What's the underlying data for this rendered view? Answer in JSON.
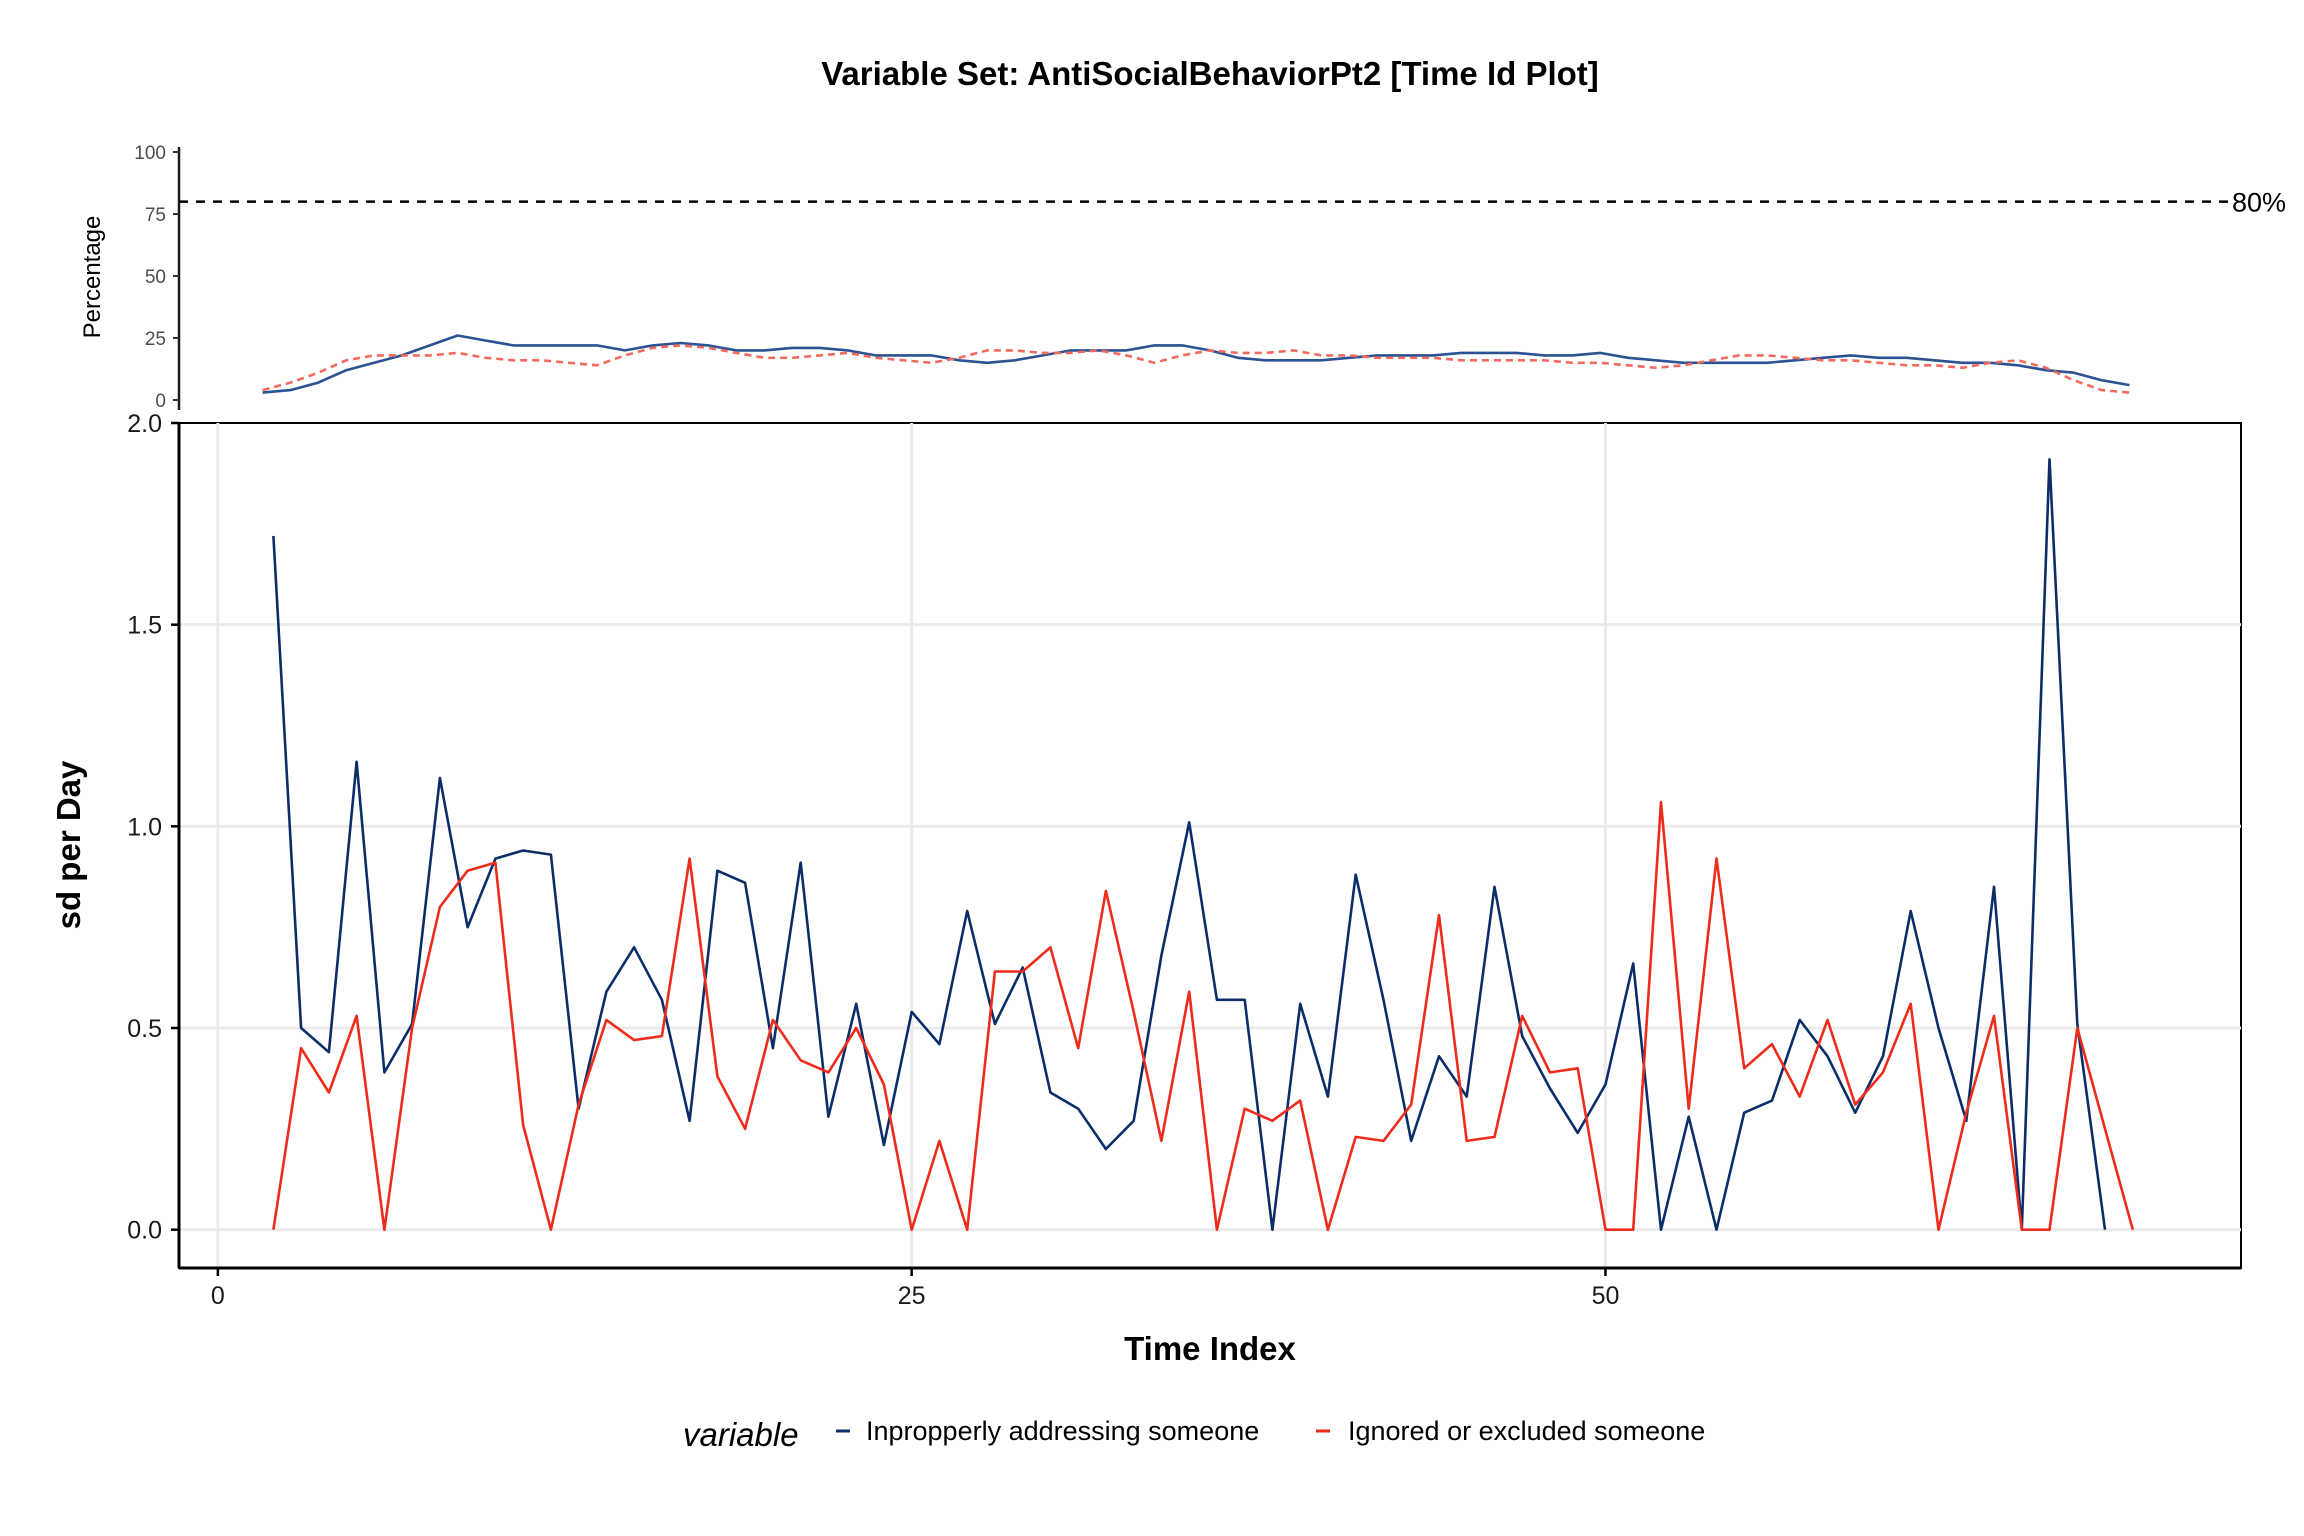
{
  "chart_data": [
    {
      "type": "line",
      "panel": "coverage",
      "title": "Variable Set: AntiSocialBehaviorPt2 [Time Id Plot]",
      "ylabel": "Percentage",
      "xlim": [
        -1,
        73
      ],
      "ylim": [
        0,
        100
      ],
      "yticks": [
        0,
        25,
        50,
        75,
        100
      ],
      "reference_line": {
        "y": 80,
        "label": "80%",
        "style": "dashed"
      },
      "x": [
        2,
        3,
        4,
        5,
        6,
        7,
        8,
        9,
        10,
        11,
        12,
        13,
        14,
        15,
        16,
        17,
        18,
        19,
        20,
        21,
        22,
        23,
        24,
        25,
        26,
        27,
        28,
        29,
        30,
        31,
        32,
        33,
        34,
        35,
        36,
        37,
        38,
        39,
        40,
        41,
        42,
        43,
        44,
        45,
        46,
        47,
        48,
        49,
        50,
        51,
        52,
        53,
        54,
        55,
        56,
        57,
        58,
        59,
        60,
        61,
        62,
        63,
        64,
        65,
        66,
        67,
        68,
        69
      ],
      "series": [
        {
          "name": "Inpropperly addressing someone",
          "color": "#2b5293",
          "dash": "solid",
          "values": [
            3,
            4,
            7,
            12,
            15,
            18,
            22,
            26,
            24,
            22,
            22,
            22,
            22,
            20,
            22,
            23,
            22,
            20,
            20,
            21,
            21,
            20,
            18,
            18,
            18,
            16,
            15,
            16,
            18,
            20,
            20,
            20,
            22,
            22,
            20,
            17,
            16,
            16,
            16,
            17,
            18,
            18,
            18,
            19,
            19,
            19,
            18,
            18,
            19,
            17,
            16,
            15,
            15,
            15,
            15,
            16,
            17,
            18,
            17,
            17,
            16,
            15,
            15,
            14,
            12,
            11,
            8,
            6
          ]
        },
        {
          "name": "Ignored or excluded someone",
          "color": "#f26a5e",
          "dash": "dashed",
          "values": [
            4,
            7,
            11,
            16,
            18,
            18,
            18,
            19,
            17,
            16,
            16,
            15,
            14,
            18,
            21,
            22,
            21,
            19,
            17,
            17,
            18,
            19,
            17,
            16,
            15,
            17,
            20,
            20,
            19,
            19,
            20,
            18,
            15,
            18,
            20,
            19,
            19,
            20,
            18,
            18,
            17,
            17,
            17,
            16,
            16,
            16,
            16,
            15,
            15,
            14,
            13,
            14,
            16,
            18,
            18,
            17,
            16,
            16,
            15,
            14,
            14,
            13,
            15,
            16,
            13,
            8,
            4,
            3
          ]
        }
      ]
    },
    {
      "type": "line",
      "panel": "main",
      "xlabel": "Time Index",
      "ylabel": "sd per Day",
      "xlim": [
        -1.4,
        72.9
      ],
      "ylim": [
        -0.095,
        2.0
      ],
      "xticks": [
        0,
        25,
        50
      ],
      "yticks": [
        "0.0",
        "0.5",
        "1.0",
        "1.5",
        "2.0"
      ],
      "grid": true,
      "legend": {
        "title": "variable",
        "position": "bottom",
        "entries": [
          "Inpropperly addressing someone",
          "Ignored or excluded someone"
        ]
      },
      "x": [
        2,
        3,
        4,
        5,
        6,
        7,
        8,
        9,
        10,
        11,
        12,
        13,
        14,
        15,
        16,
        17,
        18,
        19,
        20,
        21,
        22,
        23,
        24,
        25,
        26,
        27,
        28,
        29,
        30,
        31,
        32,
        33,
        34,
        35,
        36,
        37,
        38,
        39,
        40,
        41,
        42,
        43,
        44,
        45,
        46,
        47,
        48,
        49,
        50,
        51,
        52,
        53,
        54,
        55,
        56,
        57,
        58,
        59,
        60,
        61,
        62,
        63,
        64,
        65,
        66,
        67,
        68,
        69
      ],
      "series": [
        {
          "name": "Inpropperly addressing someone",
          "color": "#0b2e69",
          "values": [
            1.72,
            0.5,
            0.44,
            1.16,
            0.39,
            0.51,
            1.12,
            0.75,
            0.92,
            0.94,
            0.93,
            0.3,
            0.59,
            0.7,
            0.57,
            0.27,
            0.89,
            0.86,
            0.45,
            0.91,
            0.28,
            0.56,
            0.21,
            0.54,
            0.46,
            0.79,
            0.51,
            0.65,
            0.34,
            0.3,
            0.2,
            0.27,
            0.68,
            1.01,
            0.57,
            0.57,
            0.0,
            0.56,
            0.33,
            0.88,
            0.57,
            0.22,
            0.43,
            0.33,
            0.85,
            0.48,
            0.35,
            0.24,
            0.36,
            0.66,
            0.0,
            0.28,
            0.0,
            0.29,
            0.32,
            0.52,
            0.43,
            0.29,
            0.43,
            0.79,
            0.5,
            0.27,
            0.85,
            0.0,
            1.91,
            0.51,
            0.0,
            null
          ]
        },
        {
          "name": "Ignored or excluded someone",
          "color": "#ef2b1b",
          "values": [
            0.0,
            0.45,
            0.34,
            0.53,
            0.0,
            0.5,
            0.8,
            0.89,
            0.91,
            0.26,
            0.0,
            0.31,
            0.52,
            0.47,
            0.48,
            0.92,
            0.38,
            0.25,
            0.52,
            0.42,
            0.39,
            0.5,
            0.36,
            0.0,
            0.22,
            0.0,
            0.64,
            0.64,
            0.7,
            0.45,
            0.84,
            0.54,
            0.22,
            0.59,
            0.0,
            0.3,
            0.27,
            0.32,
            0.0,
            0.23,
            0.22,
            0.31,
            0.78,
            0.22,
            0.23,
            0.53,
            0.39,
            0.4,
            0.0,
            0.0,
            1.06,
            0.3,
            0.92,
            0.4,
            0.46,
            0.33,
            0.52,
            0.31,
            0.39,
            0.56,
            0.0,
            0.29,
            0.53,
            0.0,
            0.0,
            0.5,
            0.25,
            0.0
          ]
        }
      ]
    }
  ]
}
